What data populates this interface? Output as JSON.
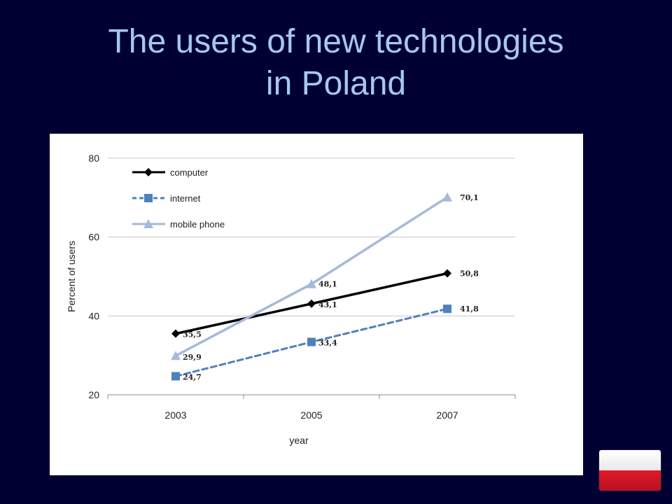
{
  "slide": {
    "title_line1": "The users of new technologies",
    "title_line2": "in Poland"
  },
  "colors": {
    "background": "#000033",
    "title": "#a6c8ec",
    "computer": "#000000",
    "internet": "#4f81bd",
    "mobile": "#a5b9da"
  },
  "flag": {
    "icon": "poland-flag-icon"
  },
  "chart_data": {
    "type": "line",
    "title": "",
    "xlabel": "year",
    "ylabel": "Percent of users",
    "categories": [
      "2003",
      "2005",
      "2007"
    ],
    "ylim": [
      20,
      80
    ],
    "yticks": [
      "20",
      "40",
      "60",
      "80"
    ],
    "grid": true,
    "legend_position": "top-left",
    "series": [
      {
        "name": "computer",
        "values": [
          35.5,
          43.1,
          50.8
        ],
        "labels": [
          "35,5",
          "43,1",
          "50,8"
        ],
        "color": "#000000",
        "marker": "diamond",
        "dash": "solid"
      },
      {
        "name": "internet",
        "values": [
          24.7,
          33.4,
          41.8
        ],
        "labels": [
          "24,7",
          "33,4",
          "41,8"
        ],
        "color": "#4f81bd",
        "marker": "square",
        "dash": "dashed"
      },
      {
        "name": "mobile phone",
        "values": [
          29.9,
          48.1,
          70.1
        ],
        "labels": [
          "29,9",
          "48,1",
          "70,1"
        ],
        "color": "#a5b9da",
        "marker": "triangle",
        "dash": "solid"
      }
    ]
  }
}
